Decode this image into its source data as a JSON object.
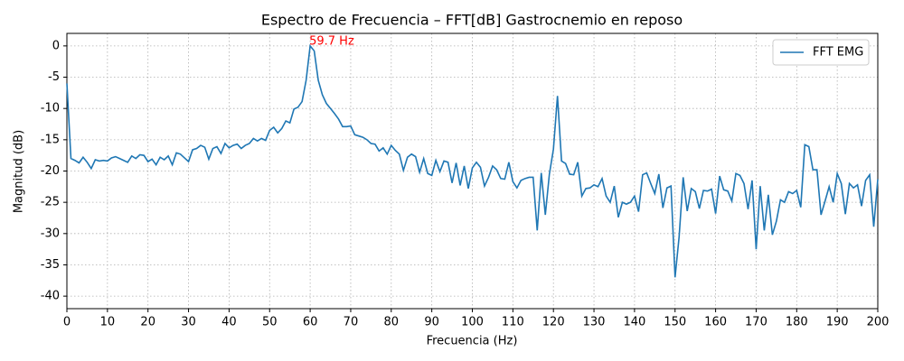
{
  "chart_data": {
    "type": "line",
    "title": "Espectro de Frecuencia – FFT[dB] Gastrocnemio en reposo",
    "x_label": "Frecuencia (Hz)",
    "y_label": "Magnitud (dB)",
    "annotation": {
      "text": "59.7 Hz",
      "color": "#ff0000"
    },
    "x": [
      0,
      1,
      2,
      3,
      4,
      5,
      6,
      7,
      8,
      9,
      10,
      11,
      12,
      13,
      14,
      15,
      16,
      17,
      18,
      19,
      20,
      21,
      22,
      23,
      24,
      25,
      26,
      27,
      28,
      29,
      30,
      31,
      32,
      33,
      34,
      35,
      36,
      37,
      38,
      39,
      40,
      41,
      42,
      43,
      44,
      45,
      46,
      47,
      48,
      49,
      50,
      51,
      52,
      53,
      54,
      55,
      56,
      57,
      58,
      59,
      60,
      61,
      62,
      63,
      64,
      65,
      66,
      67,
      68,
      69,
      70,
      71,
      72,
      73,
      74,
      75,
      76,
      77,
      78,
      79,
      80,
      81,
      82,
      83,
      84,
      85,
      86,
      87,
      88,
      89,
      90,
      91,
      92,
      93,
      94,
      95,
      96,
      97,
      98,
      99,
      100,
      101,
      102,
      103,
      104,
      105,
      106,
      107,
      108,
      109,
      110,
      111,
      112,
      113,
      114,
      115,
      116,
      117,
      118,
      119,
      120,
      121,
      122,
      123,
      124,
      125,
      126,
      127,
      128,
      129,
      130,
      131,
      132,
      133,
      134,
      135,
      136,
      137,
      138,
      139,
      140,
      141,
      142,
      143,
      144,
      145,
      146,
      147,
      148,
      149,
      150,
      151,
      152,
      153,
      154,
      155,
      156,
      157,
      158,
      159,
      160,
      161,
      162,
      163,
      164,
      165,
      166,
      167,
      168,
      169,
      170,
      171,
      172,
      173,
      174,
      175,
      176,
      177,
      178,
      179,
      180,
      181,
      182,
      183,
      184,
      185,
      186,
      187,
      188,
      189,
      190,
      191,
      192,
      193,
      194,
      195,
      196,
      197,
      198,
      199,
      200
    ],
    "series": [
      {
        "name": "FFT EMG",
        "color": "#1f77b4",
        "values": [
          -6,
          -18,
          -18.3,
          -18.7,
          -17.8,
          -18.6,
          -19.6,
          -18.2,
          -18.4,
          -18.3,
          -18.4,
          -17.9,
          -17.7,
          -18,
          -18.3,
          -18.6,
          -17.6,
          -18,
          -17.4,
          -17.5,
          -18.5,
          -18.1,
          -19,
          -17.8,
          -18.2,
          -17.6,
          -19,
          -17.1,
          -17.3,
          -17.9,
          -18.5,
          -16.6,
          -16.4,
          -15.9,
          -16.2,
          -18.1,
          -16.4,
          -16.1,
          -17.2,
          -15.6,
          -16.3,
          -15.9,
          -15.7,
          -16.4,
          -15.9,
          -15.6,
          -14.8,
          -15.2,
          -14.8,
          -15.1,
          -13.5,
          -13,
          -13.9,
          -13.2,
          -12,
          -12.3,
          -10.1,
          -9.8,
          -8.9,
          -5.5,
          0,
          -0.8,
          -5.5,
          -7.8,
          -9.2,
          -10,
          -10.8,
          -11.7,
          -12.9,
          -12.9,
          -12.8,
          -14.2,
          -14.4,
          -14.6,
          -15,
          -15.6,
          -15.7,
          -16.8,
          -16.3,
          -17.3,
          -15.9,
          -16.7,
          -17.3,
          -19.9,
          -17.8,
          -17.3,
          -17.7,
          -20.2,
          -18,
          -20.4,
          -20.7,
          -18.3,
          -20.1,
          -18.4,
          -18.6,
          -21.9,
          -18.7,
          -22.3,
          -19.2,
          -22.8,
          -19.5,
          -18.6,
          -19.4,
          -22.4,
          -21,
          -19.2,
          -19.8,
          -21.2,
          -21.3,
          -18.6,
          -21.7,
          -22.7,
          -21.5,
          -21.2,
          -21,
          -21,
          -29.5,
          -20.3,
          -27,
          -20.5,
          -16.5,
          -8,
          -18.4,
          -18.8,
          -20.5,
          -20.6,
          -18.6,
          -24,
          -22.8,
          -22.7,
          -22.2,
          -22.5,
          -21.2,
          -24,
          -25,
          -22.4,
          -27.4,
          -25,
          -25.3,
          -25,
          -24,
          -26.5,
          -20.6,
          -20.3,
          -22,
          -23.6,
          -20.5,
          -25.9,
          -22.7,
          -22.4,
          -37,
          -30.5,
          -21,
          -26.4,
          -22.8,
          -23.3,
          -26,
          -23.1,
          -23.2,
          -22.9,
          -26.8,
          -20.8,
          -23,
          -23.2,
          -24.8,
          -20.4,
          -20.7,
          -22,
          -26.1,
          -21.5,
          -32.5,
          -22.4,
          -29.5,
          -23.8,
          -30.2,
          -28,
          -24.6,
          -25,
          -23.3,
          -23.6,
          -23.1,
          -25.8,
          -15.8,
          -16.1,
          -19.8,
          -19.8,
          -27,
          -24.8,
          -22.5,
          -25,
          -20.4,
          -22,
          -26.9,
          -22,
          -22.7,
          -22.2,
          -25.6,
          -21.5,
          -20.6,
          -28.9,
          -21.3
        ]
      }
    ],
    "xlim": [
      0,
      200
    ],
    "xticks": [
      0,
      10,
      20,
      30,
      40,
      50,
      60,
      70,
      80,
      90,
      100,
      110,
      120,
      130,
      140,
      150,
      160,
      170,
      180,
      190,
      200
    ],
    "ylim": [
      -42,
      2
    ],
    "yticks": [
      -40,
      -35,
      -30,
      -25,
      -20,
      -15,
      -10,
      -5,
      0
    ],
    "grid": true,
    "legend": "upper right"
  }
}
